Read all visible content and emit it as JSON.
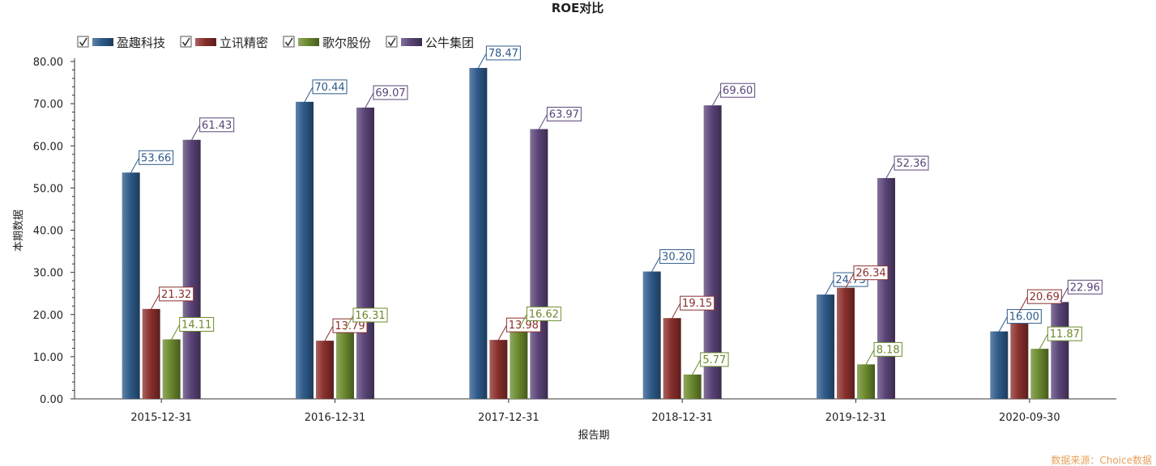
{
  "chart_data": {
    "type": "bar",
    "title": "ROE对比",
    "xlabel": "报告期",
    "ylabel": "本期数据",
    "source": "数据来源：Choice数据",
    "categories": [
      "2015-12-31",
      "2016-12-31",
      "2017-12-31",
      "2018-12-31",
      "2019-12-31",
      "2020-09-30"
    ],
    "ylim": [
      0,
      80
    ],
    "yticks": [
      "0.00",
      "10.00",
      "20.00",
      "30.00",
      "40.00",
      "50.00",
      "60.00",
      "70.00",
      "80.00"
    ],
    "legend_position": "top-left",
    "grid": false,
    "series": [
      {
        "name": "盈趣科技",
        "color": "#2e5a8a",
        "values": [
          53.66,
          70.44,
          78.47,
          30.2,
          24.73,
          16.0
        ]
      },
      {
        "name": "立讯精密",
        "color": "#8a2f2c",
        "values": [
          21.32,
          13.79,
          13.98,
          19.15,
          26.34,
          20.69
        ]
      },
      {
        "name": "歌尔股份",
        "color": "#6b8a2e",
        "values": [
          14.11,
          16.31,
          16.62,
          5.77,
          8.18,
          11.87
        ]
      },
      {
        "name": "公牛集团",
        "color": "#5a4478",
        "values": [
          61.43,
          69.07,
          63.97,
          69.6,
          52.36,
          22.96
        ]
      }
    ]
  }
}
